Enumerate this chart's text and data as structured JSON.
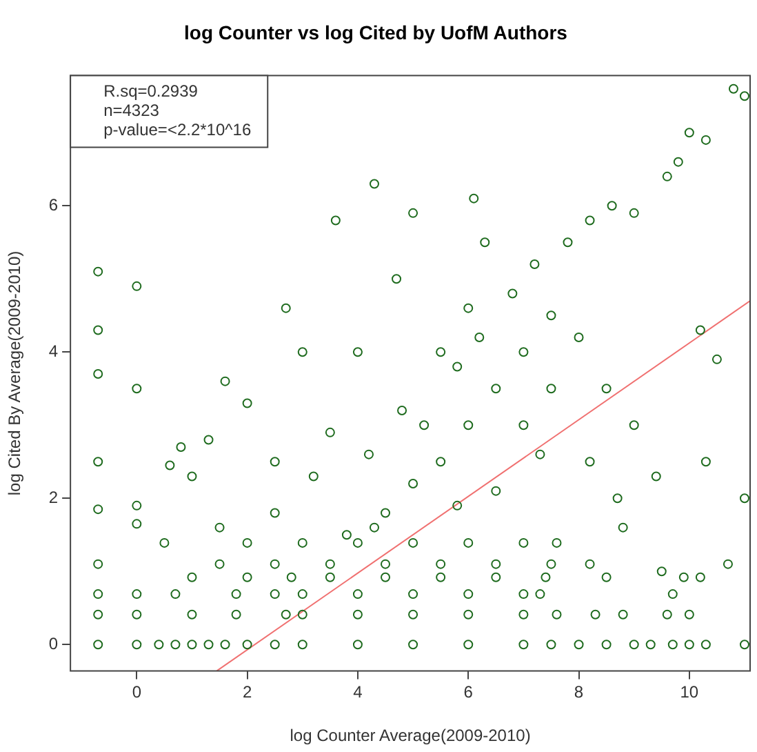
{
  "chart_data": {
    "type": "scatter",
    "title": "log Counter vs log Cited by UofM Authors",
    "xlabel": "log Counter Average(2009-2010)",
    "ylabel": "log Cited By Average(2009-2010)",
    "annotations": [
      "R.sq=0.2939",
      "n=4323",
      "p-value=<2.2*10^16"
    ],
    "xlim": [
      -1.2,
      11.1
    ],
    "ylim": [
      -0.36,
      7.78
    ],
    "xticks": [
      0,
      2,
      4,
      6,
      8,
      10
    ],
    "yticks": [
      0,
      2,
      4,
      6
    ],
    "grid": false,
    "legend": false,
    "marker": "circle",
    "series": [
      {
        "type": "scatter",
        "color": "#1e6b1e",
        "x": [
          -0.7,
          0,
          0.4,
          0.7,
          1,
          1.3,
          1.6,
          2,
          2.5,
          3,
          4,
          5,
          6,
          7,
          7.5,
          8,
          8.5,
          9,
          9.3,
          9.7,
          10,
          10.3,
          11,
          -0.7,
          0,
          1,
          1.8,
          2.7,
          3,
          4,
          5,
          6,
          7,
          7.6,
          8.3,
          8.8,
          9.6,
          10,
          -0.7,
          0,
          0.7,
          1.8,
          2.5,
          3,
          4,
          5,
          6,
          7,
          7.3,
          9.7,
          1,
          2,
          2.8,
          3.5,
          4.5,
          5.5,
          6.5,
          7.4,
          8.5,
          9.9,
          10.2,
          -0.7,
          1.5,
          2.5,
          3.5,
          4.5,
          5.5,
          6.5,
          7.5,
          8.2,
          10.7,
          0.5,
          2,
          3,
          4,
          5,
          6,
          7,
          7.6,
          4.5,
          5,
          5.5,
          6,
          6.5,
          7,
          7.5,
          5.2,
          5.8,
          6.2,
          6.8,
          7.2,
          7.8,
          8.2,
          8.6,
          9,
          9.6,
          10,
          10.3,
          10.8,
          11,
          9.8,
          8,
          8.5,
          9,
          9.4,
          10.2,
          10.5,
          10.3,
          11,
          5,
          3.6,
          4.3,
          6.1,
          6.3,
          4.7,
          2.7,
          3,
          4,
          1.6,
          0,
          -0.7,
          0,
          -0.7,
          -0.7,
          0.8,
          1.3,
          2,
          2.5,
          3.5,
          3.2,
          4.2,
          4.8,
          5.5,
          6,
          7,
          7.5,
          8.2,
          8.7,
          6.5,
          7.3,
          5.8,
          4.3,
          3.8,
          2.5,
          1.5,
          -0.7,
          0,
          -0.7,
          0,
          0.6,
          1,
          8.8,
          9.5
        ],
        "values": [
          0,
          0,
          0,
          0,
          0,
          0,
          0,
          0,
          0,
          0,
          0,
          0,
          0,
          0,
          0,
          0,
          0,
          0,
          0,
          0,
          0,
          0,
          0,
          0.41,
          0.41,
          0.41,
          0.41,
          0.41,
          0.41,
          0.41,
          0.41,
          0.41,
          0.41,
          0.41,
          0.41,
          0.41,
          0.41,
          0.41,
          0.69,
          0.69,
          0.69,
          0.69,
          0.69,
          0.69,
          0.69,
          0.69,
          0.69,
          0.69,
          0.69,
          0.69,
          0.92,
          0.92,
          0.92,
          0.92,
          0.92,
          0.92,
          0.92,
          0.92,
          0.92,
          0.92,
          0.92,
          1.1,
          1.1,
          1.1,
          1.1,
          1.1,
          1.1,
          1.1,
          1.1,
          1.1,
          1.1,
          1.39,
          1.39,
          1.39,
          1.39,
          1.39,
          1.39,
          1.39,
          1.39,
          1.8,
          2.2,
          2.5,
          3,
          3.5,
          4,
          4.5,
          3,
          3.8,
          4.2,
          4.8,
          5.2,
          5.5,
          5.8,
          6,
          5.9,
          6.4,
          7,
          6.9,
          7.6,
          7.5,
          6.6,
          4.2,
          3.5,
          3,
          2.3,
          4.3,
          3.9,
          2.5,
          2,
          5.9,
          5.8,
          6.3,
          6.1,
          5.5,
          5,
          4.6,
          4,
          4,
          3.6,
          3.5,
          5.1,
          4.9,
          4.3,
          3.7,
          2.7,
          2.8,
          3.3,
          2.5,
          2.9,
          2.3,
          2.6,
          3.2,
          4,
          4.6,
          3,
          3.5,
          2.5,
          2,
          2.1,
          2.6,
          1.9,
          1.6,
          1.5,
          1.8,
          1.6,
          2.5,
          1.9,
          1.85,
          1.65,
          2.45,
          2.3,
          1.6,
          1
        ]
      },
      {
        "type": "line",
        "color": "#f07070",
        "marker": "none",
        "x": [
          1.45,
          11.1
        ],
        "values": [
          -0.36,
          4.7
        ]
      }
    ]
  }
}
